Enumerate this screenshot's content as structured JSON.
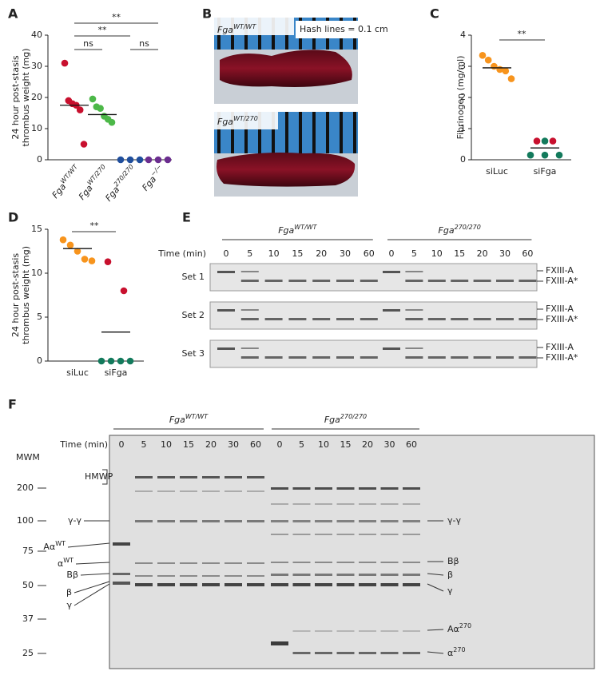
{
  "A": {
    "letter": "A",
    "ylabel": [
      "24 hour post-stasis",
      "thrombus weight (mg)"
    ],
    "ylim": [
      0,
      40
    ],
    "yticks": [
      0,
      10,
      20,
      30,
      40
    ],
    "groups": [
      {
        "base": "Fga",
        "sup": "WT/WT",
        "series": [
          {
            "color": "#c8102e",
            "values": [
              31,
              19,
              18,
              17.5,
              16,
              5
            ]
          }
        ],
        "mean": 17.5
      },
      {
        "base": "Fga",
        "sup": "WT/270",
        "series": [
          {
            "color": "#4cb848",
            "values": [
              19.5,
              17,
              16.5,
              14,
              13,
              12
            ]
          }
        ],
        "mean": 14.5
      },
      {
        "base": "Fga",
        "sup": "270/270",
        "series": [
          {
            "color": "#1f4e9c",
            "values": [
              0,
              0,
              0
            ]
          }
        ]
      },
      {
        "base": "Fga",
        "sup": "−/−",
        "series": [
          {
            "color": "#6b2d8f",
            "values": [
              0,
              0,
              0
            ]
          }
        ]
      }
    ],
    "comparisons": [
      "ns",
      "**",
      "ns",
      "**"
    ]
  },
  "B": {
    "letter": "B",
    "images": [
      {
        "base": "Fga",
        "sup": "WT/WT"
      },
      {
        "base": "Fga",
        "sup": "WT/270"
      }
    ],
    "scale_note": "Hash lines = 0.1 cm"
  },
  "C": {
    "letter": "C",
    "ylabel": "Fibrinogen (mg/ml)",
    "ylim": [
      0,
      4
    ],
    "yticks": [
      0,
      1,
      2,
      3,
      4
    ],
    "groups": [
      {
        "label": "siLuc",
        "series": [
          {
            "color": "#f7941d",
            "values": [
              3.35,
              3.2,
              3.0,
              2.9,
              2.85,
              2.6
            ]
          }
        ],
        "mean": 2.95
      },
      {
        "label": "siFga",
        "series": [
          {
            "color": "#c8102e",
            "values": [
              0.6,
              0.6
            ]
          },
          {
            "color": "#137a5c",
            "values": [
              0.6
            ]
          },
          {
            "color": "#137a5c",
            "values": [
              0.15,
              0.15,
              0.15
            ]
          }
        ],
        "mean": 0.38
      }
    ],
    "comparison": "**"
  },
  "D": {
    "letter": "D",
    "ylabel": [
      "24 hour post-stasis",
      "thrombus weight (mg)"
    ],
    "ylim": [
      0,
      15
    ],
    "yticks": [
      0,
      5,
      10,
      15
    ],
    "groups": [
      {
        "label": "siLuc",
        "series": [
          {
            "color": "#f7941d",
            "values": [
              13.8,
              13.2,
              12.5,
              11.6,
              11.4
            ]
          }
        ],
        "mean": 12.8
      },
      {
        "label": "siFga",
        "series": [
          {
            "color": "#c8102e",
            "values": [
              11.3,
              8
            ]
          },
          {
            "color": "#137a5c",
            "values": [
              0,
              0,
              0,
              0
            ]
          }
        ],
        "mean": 3.3
      }
    ],
    "comparison": "**"
  },
  "E": {
    "letter": "E",
    "time_label": "Time (min)",
    "genotypes": [
      {
        "base": "Fga",
        "sup": "WT/WT",
        "times": [
          0,
          5,
          10,
          15,
          20,
          30,
          60
        ]
      },
      {
        "base": "Fga",
        "sup": "270/270",
        "times": [
          0,
          5,
          10,
          15,
          20,
          30,
          60
        ]
      }
    ],
    "sets": [
      "Set 1",
      "Set 2",
      "Set 3"
    ],
    "band_labels": [
      "FXIII-A",
      "FXIII-A*"
    ]
  },
  "F": {
    "letter": "F",
    "time_label": "Time (min)",
    "genotypes": [
      {
        "base": "Fga",
        "sup": "WT/WT",
        "times": [
          0,
          5,
          10,
          15,
          20,
          30,
          60
        ]
      },
      {
        "base": "Fga",
        "sup": "270/270",
        "times": [
          0,
          5,
          10,
          15,
          20,
          30,
          60
        ]
      }
    ],
    "mwm": {
      "title": "MWM",
      "sizes": [
        200,
        100,
        75,
        50,
        37,
        25
      ]
    },
    "hmwp": "HMWP",
    "left_labels": [
      {
        "text": "γ-γ"
      },
      {
        "text": "Aα",
        "sup": "WT"
      },
      {
        "text": "α",
        "sup": "WT"
      },
      {
        "text": "Bβ"
      },
      {
        "text": "β"
      },
      {
        "text": "γ"
      }
    ],
    "right_labels": [
      {
        "text": "γ-γ"
      },
      {
        "text": "Bβ"
      },
      {
        "text": "β"
      },
      {
        "text": "γ"
      },
      {
        "text": "Aα",
        "sup": "270"
      },
      {
        "text": "α",
        "sup": "270"
      }
    ]
  }
}
